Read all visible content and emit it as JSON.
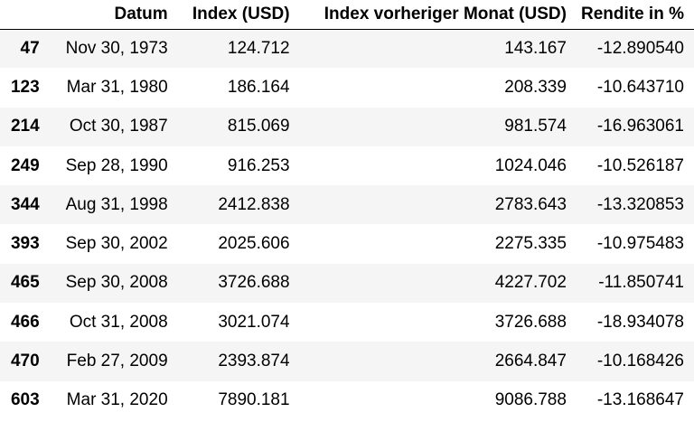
{
  "columns": [
    "",
    "Datum",
    "Index (USD)",
    "Index vorheriger Monat (USD)",
    "Rendite in %"
  ],
  "rows": [
    {
      "idx": "47",
      "date": "Nov 30, 1973",
      "index": "124.712",
      "prev": "143.167",
      "ret": "-12.890540"
    },
    {
      "idx": "123",
      "date": "Mar 31, 1980",
      "index": "186.164",
      "prev": "208.339",
      "ret": "-10.643710"
    },
    {
      "idx": "214",
      "date": "Oct 30, 1987",
      "index": "815.069",
      "prev": "981.574",
      "ret": "-16.963061"
    },
    {
      "idx": "249",
      "date": "Sep 28, 1990",
      "index": "916.253",
      "prev": "1024.046",
      "ret": "-10.526187"
    },
    {
      "idx": "344",
      "date": "Aug 31, 1998",
      "index": "2412.838",
      "prev": "2783.643",
      "ret": "-13.320853"
    },
    {
      "idx": "393",
      "date": "Sep 30, 2002",
      "index": "2025.606",
      "prev": "2275.335",
      "ret": "-10.975483"
    },
    {
      "idx": "465",
      "date": "Sep 30, 2008",
      "index": "3726.688",
      "prev": "4227.702",
      "ret": "-11.850741"
    },
    {
      "idx": "466",
      "date": "Oct 31, 2008",
      "index": "3021.074",
      "prev": "3726.688",
      "ret": "-18.934078"
    },
    {
      "idx": "470",
      "date": "Feb 27, 2009",
      "index": "2393.874",
      "prev": "2664.847",
      "ret": "-10.168426"
    },
    {
      "idx": "603",
      "date": "Mar 31, 2020",
      "index": "7890.181",
      "prev": "9086.788",
      "ret": "-13.168647"
    }
  ]
}
